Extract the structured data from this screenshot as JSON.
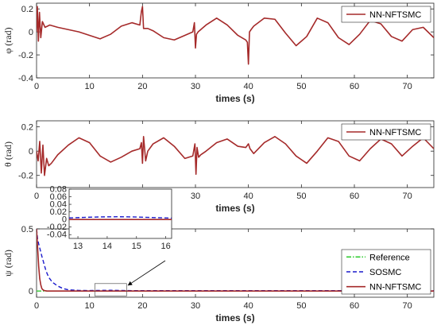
{
  "chart_data": [
    {
      "type": "line",
      "ylabel": "φ (rad)",
      "xlabel": "times (s)",
      "xlim": [
        0,
        75
      ],
      "ylim": [
        -0.4,
        0.25
      ],
      "xticks": [
        0,
        10,
        20,
        30,
        40,
        50,
        60,
        70
      ],
      "yticks": [
        -0.4,
        -0.2,
        0,
        0.2
      ],
      "ytick_labels": [
        "-0.4",
        "-0.2",
        "0",
        "0.2"
      ],
      "legend": {
        "position": "top-right",
        "entries": [
          "NN-NFTSMC"
        ]
      },
      "series": [
        {
          "name": "NN-NFTSMC",
          "color": "#a52a2a",
          "style": "solid",
          "x": [
            0,
            0.15,
            0.35,
            0.55,
            0.8,
            1.1,
            1.6,
            2.5,
            4,
            6,
            8,
            10,
            12,
            14,
            16,
            18,
            19.5,
            19.8,
            20.0,
            20.2,
            20.5,
            21,
            22,
            24,
            26,
            28,
            29.5,
            29.8,
            30.0,
            30.2,
            30.5,
            31,
            32,
            34,
            36,
            38,
            39.5,
            39.8,
            40.0,
            40.2,
            40.5,
            41,
            43,
            45,
            47,
            49,
            51,
            53,
            55,
            57,
            59,
            61,
            63,
            65,
            67,
            69,
            71,
            73,
            75
          ],
          "y": [
            0,
            0.22,
            -0.08,
            0.17,
            -0.05,
            0.09,
            0.04,
            0.06,
            0.04,
            0.02,
            0.0,
            -0.03,
            -0.06,
            -0.02,
            0.05,
            0.08,
            0.06,
            0.18,
            0.22,
            0.03,
            0.03,
            0.03,
            0.01,
            -0.05,
            -0.07,
            -0.03,
            0.0,
            0.08,
            -0.14,
            -0.02,
            0.0,
            0.02,
            0.06,
            0.12,
            0.06,
            -0.03,
            -0.07,
            -0.09,
            -0.28,
            0.0,
            0.02,
            0.05,
            0.12,
            0.11,
            -0.01,
            -0.12,
            -0.04,
            0.12,
            0.08,
            -0.05,
            -0.11,
            -0.02,
            0.1,
            0.07,
            -0.04,
            -0.08,
            0.02,
            0.04,
            -0.05
          ]
        }
      ]
    },
    {
      "type": "line",
      "ylabel": "θ (rad)",
      "xlabel": "times (s)",
      "xlim": [
        0,
        75
      ],
      "ylim": [
        -0.3,
        0.25
      ],
      "xticks": [
        0,
        10,
        20,
        30,
        40,
        50,
        60,
        70
      ],
      "yticks": [
        -0.2,
        0,
        0.2
      ],
      "ytick_labels": [
        "-0.2",
        "0",
        "0.2"
      ],
      "legend": {
        "position": "top-right",
        "entries": [
          "NN-NFTSMC"
        ]
      },
      "series": [
        {
          "name": "NN-NFTSMC",
          "color": "#a52a2a",
          "style": "solid",
          "x": [
            0,
            0.3,
            0.6,
            0.9,
            1.2,
            1.5,
            1.9,
            2.3,
            2.8,
            4,
            6,
            8,
            10,
            12,
            14,
            16,
            18,
            19.5,
            19.8,
            20.0,
            20.2,
            20.6,
            21,
            22,
            24,
            26,
            28,
            29.5,
            29.9,
            30.1,
            30.3,
            30.6,
            31,
            32,
            34,
            36,
            38,
            39.5,
            40.0,
            40.3,
            41,
            43,
            45,
            47,
            49,
            51,
            53,
            55,
            57,
            59,
            61,
            63,
            65,
            67,
            69,
            71,
            73,
            75
          ],
          "y": [
            0,
            -0.08,
            0.08,
            -0.18,
            0.05,
            -0.2,
            -0.06,
            -0.12,
            -0.1,
            -0.03,
            0.05,
            0.11,
            0.07,
            -0.04,
            -0.09,
            -0.05,
            0.0,
            0.02,
            0.07,
            -0.1,
            0.12,
            -0.08,
            0.0,
            0.06,
            0.11,
            0.04,
            -0.06,
            -0.04,
            0.06,
            -0.19,
            0.03,
            -0.05,
            -0.03,
            0.0,
            0.07,
            0.1,
            0.04,
            0.03,
            0.06,
            0.02,
            -0.02,
            0.07,
            0.12,
            0.06,
            -0.04,
            -0.1,
            0.0,
            0.11,
            0.08,
            -0.04,
            -0.08,
            0.02,
            0.1,
            0.06,
            -0.04,
            0.04,
            0.11,
            0.02
          ]
        }
      ]
    },
    {
      "type": "line",
      "ylabel": "ψ (rad)",
      "xlabel": "times (s)",
      "xlim": [
        0,
        75
      ],
      "ylim": [
        -0.05,
        0.5
      ],
      "xticks": [
        0,
        10,
        20,
        30,
        40,
        50,
        60,
        70
      ],
      "yticks": [
        0,
        0.5
      ],
      "ytick_labels": [
        "0",
        "0.5"
      ],
      "legend": {
        "position": "bottom-right",
        "entries": [
          "Reference",
          "SOSMC",
          "NN-NFTSMC"
        ]
      },
      "series": [
        {
          "name": "Reference",
          "color": "#33cc33",
          "style": "dashdot",
          "x": [
            0,
            75
          ],
          "y": [
            0,
            0
          ]
        },
        {
          "name": "SOSMC",
          "color": "#1a1acc",
          "style": "dashed",
          "x": [
            0,
            0.2,
            0.4,
            0.7,
            1.0,
            1.4,
            1.8,
            2.3,
            3,
            4,
            5,
            6,
            8,
            10,
            14,
            18,
            75
          ],
          "y": [
            0.5,
            0.42,
            0.38,
            0.33,
            0.28,
            0.22,
            0.16,
            0.11,
            0.07,
            0.04,
            0.02,
            0.01,
            0.005,
            0.004,
            0.006,
            0.003,
            0.003
          ]
        },
        {
          "name": "NN-NFTSMC",
          "color": "#a52a2a",
          "style": "solid",
          "x": [
            0,
            0.2,
            0.4,
            0.6,
            0.8,
            1.0,
            1.2,
            1.5,
            2,
            75
          ],
          "y": [
            0.5,
            0.35,
            0.2,
            0.1,
            0.05,
            0.02,
            0.01,
            0.003,
            0,
            0
          ]
        }
      ],
      "inset": {
        "xlim": [
          12.7,
          16.2
        ],
        "ylim": [
          -0.05,
          0.08
        ],
        "xticks": [
          13,
          14,
          15,
          16
        ],
        "yticks": [
          -0.04,
          -0.02,
          0,
          0.02,
          0.04,
          0.06,
          0.08
        ],
        "ytick_labels": [
          "-0.04",
          "-0.02",
          "0",
          "0.02",
          "0.04",
          "0.06",
          "0.08"
        ],
        "zoom_region": {
          "xlim": [
            11,
            17
          ],
          "ylim": [
            -0.04,
            0.06
          ]
        },
        "series": [
          {
            "name": "Reference",
            "color": "#33cc33",
            "style": "dashdot",
            "x": [
              12.7,
              16.2
            ],
            "y": [
              0,
              0
            ]
          },
          {
            "name": "SOSMC",
            "color": "#1a1acc",
            "style": "dashed",
            "x": [
              12.7,
              13.2,
              13.8,
              14.4,
              15.0,
              15.6,
              16.2
            ],
            "y": [
              0.004,
              0.0055,
              0.0068,
              0.0072,
              0.0065,
              0.005,
              0.0035
            ]
          },
          {
            "name": "NN-NFTSMC",
            "color": "#a52a2a",
            "style": "solid",
            "x": [
              12.7,
              16.2
            ],
            "y": [
              0,
              0
            ]
          }
        ]
      }
    }
  ]
}
